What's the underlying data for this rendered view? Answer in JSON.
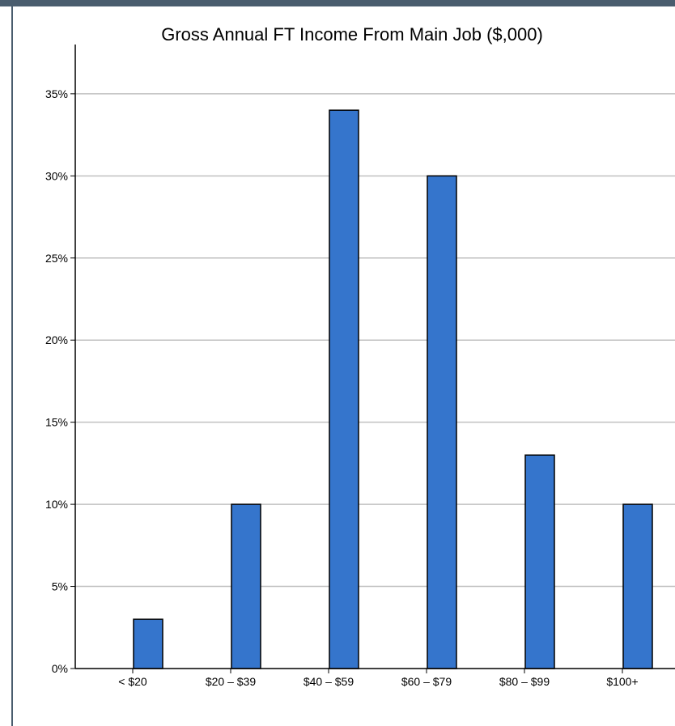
{
  "colors": {
    "bar_fill": "#3575cc",
    "bar_stroke": "#000000",
    "grid": "#c0c0c0",
    "frame": "#4a5d6e"
  },
  "chart_data": {
    "type": "bar",
    "title": "Gross Annual FT Income From Main Job ($,000)",
    "xlabel": "",
    "ylabel": "",
    "categories": [
      "< $20",
      "$20 – $39",
      "$40 – $59",
      "$60 – $79",
      "$80 – $99",
      "$100+"
    ],
    "values": [
      3,
      10,
      34,
      30,
      13,
      10
    ],
    "ylim": [
      0,
      38
    ],
    "yticks": [
      0,
      5,
      10,
      15,
      20,
      25,
      30,
      35
    ],
    "ytick_labels": [
      "0%",
      "5%",
      "10%",
      "15%",
      "20%",
      "25%",
      "30%",
      "35%"
    ],
    "grid": true,
    "legend": "none"
  }
}
